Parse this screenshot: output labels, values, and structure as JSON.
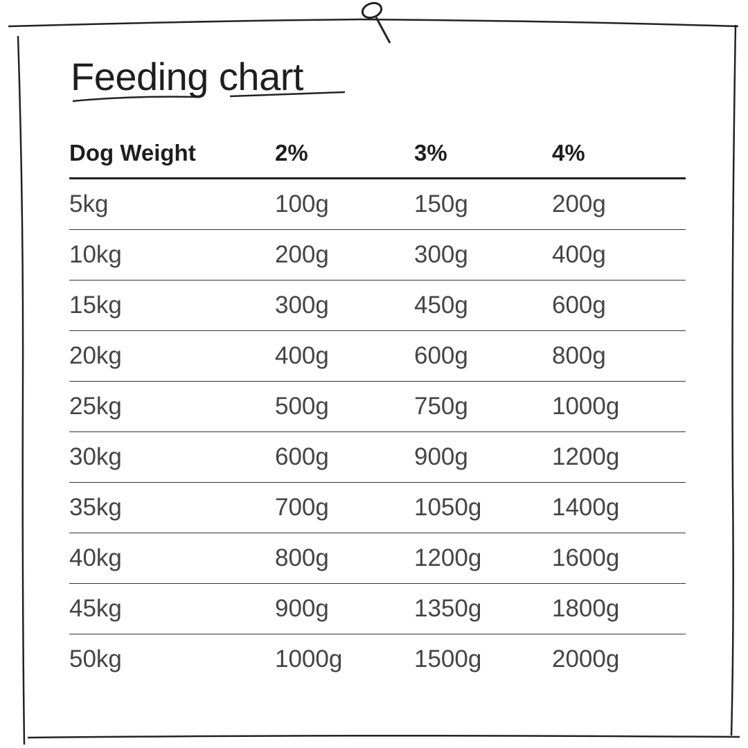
{
  "title": "Feeding chart",
  "table": {
    "headers": [
      "Dog Weight",
      "2%",
      "3%",
      "4%"
    ],
    "rows": [
      [
        "5kg",
        "100g",
        "150g",
        "200g"
      ],
      [
        "10kg",
        "200g",
        "300g",
        "400g"
      ],
      [
        "15kg",
        "300g",
        "450g",
        "600g"
      ],
      [
        "20kg",
        "400g",
        "600g",
        "800g"
      ],
      [
        "25kg",
        "500g",
        "750g",
        "1000g"
      ],
      [
        "30kg",
        "600g",
        "900g",
        "1200g"
      ],
      [
        "35kg",
        "700g",
        "1050g",
        "1400g"
      ],
      [
        "40kg",
        "800g",
        "1200g",
        "1600g"
      ],
      [
        "45kg",
        "900g",
        "1350g",
        "1800g"
      ],
      [
        "50kg",
        "1000g",
        "1500g",
        "2000g"
      ]
    ]
  }
}
